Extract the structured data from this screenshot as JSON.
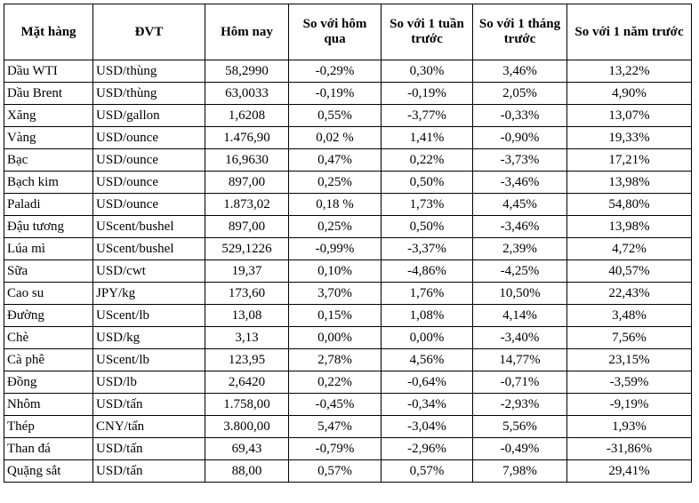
{
  "table": {
    "headers": [
      "Mặt hàng",
      "ĐVT",
      "Hôm nay",
      "So với hôm qua",
      "So với 1 tuần trước",
      "So với 1 tháng trước",
      "So với 1 năm trước"
    ],
    "rows": [
      [
        "Dầu WTI",
        "USD/thùng",
        "58,2990",
        "-0,29%",
        "0,30%",
        "3,46%",
        "13,22%"
      ],
      [
        "Dầu Brent",
        "USD/thùng",
        "63,0033",
        "-0,19%",
        "-0,19%",
        "2,05%",
        "4,90%"
      ],
      [
        "Xăng",
        "USD/gallon",
        "1,6208",
        "0,55%",
        "-3,77%",
        "-0,33%",
        "13,07%"
      ],
      [
        "Vàng",
        "USD/ounce",
        "1.476,90",
        "0,02 %",
        "1,41%",
        "-0,90%",
        "19,33%"
      ],
      [
        "Bạc",
        "USD/ounce",
        "16,9630",
        "0,47%",
        "0,22%",
        "-3,73%",
        "17,21%"
      ],
      [
        "Bạch kim",
        "USD/ounce",
        "897,00",
        "0,25%",
        "0,50%",
        "-3,46%",
        "13,98%"
      ],
      [
        "Paladi",
        "USD/ounce",
        "1.873,02",
        "0,18 %",
        "1,73%",
        "4,45%",
        "54,80%"
      ],
      [
        "Đậu tương",
        "UScent/bushel",
        "897,00",
        "0,25%",
        "0,50%",
        "-3,46%",
        "13,98%"
      ],
      [
        "Lúa mì",
        "UScent/bushel",
        "529,1226",
        "-0,99%",
        "-3,37%",
        "2,39%",
        "4,72%"
      ],
      [
        "Sữa",
        "USD/cwt",
        "19,37",
        "0,10%",
        "-4,86%",
        "-4,25%",
        "40,57%"
      ],
      [
        "Cao su",
        "JPY/kg",
        "173,60",
        "3,70%",
        "1,76%",
        "10,50%",
        "22,43%"
      ],
      [
        "Đường",
        "UScent/lb",
        "13,08",
        "0,15%",
        "1,08%",
        "4,14%",
        "3,48%"
      ],
      [
        "Chè",
        "USD/kg",
        "3,13",
        "0,00%",
        "0,00%",
        "-3,40%",
        "7,56%"
      ],
      [
        "Cà phê",
        "UScent/lb",
        "123,95",
        "2,78%",
        "4,56%",
        "14,77%",
        "23,15%"
      ],
      [
        "Đồng",
        "USD/lb",
        "2,6420",
        "0,22%",
        "-0,64%",
        "-0,71%",
        "-3,59%"
      ],
      [
        "Nhôm",
        "USD/tấn",
        "1.758,00",
        "-0,45%",
        "-0,34%",
        "-2,93%",
        "-9,19%"
      ],
      [
        "Thép",
        "CNY/tấn",
        "3.800,00",
        "5,47%",
        "-3,04%",
        "5,56%",
        "1,93%"
      ],
      [
        "Than đá",
        "USD/tấn",
        "69,43",
        "-0,79%",
        "-2,96%",
        "-0,49%",
        "-31,86%"
      ],
      [
        "Quặng sắt",
        "USD/tấn",
        "88,00",
        "0,57%",
        "0,57%",
        "7,98%",
        "29,41%"
      ]
    ]
  }
}
